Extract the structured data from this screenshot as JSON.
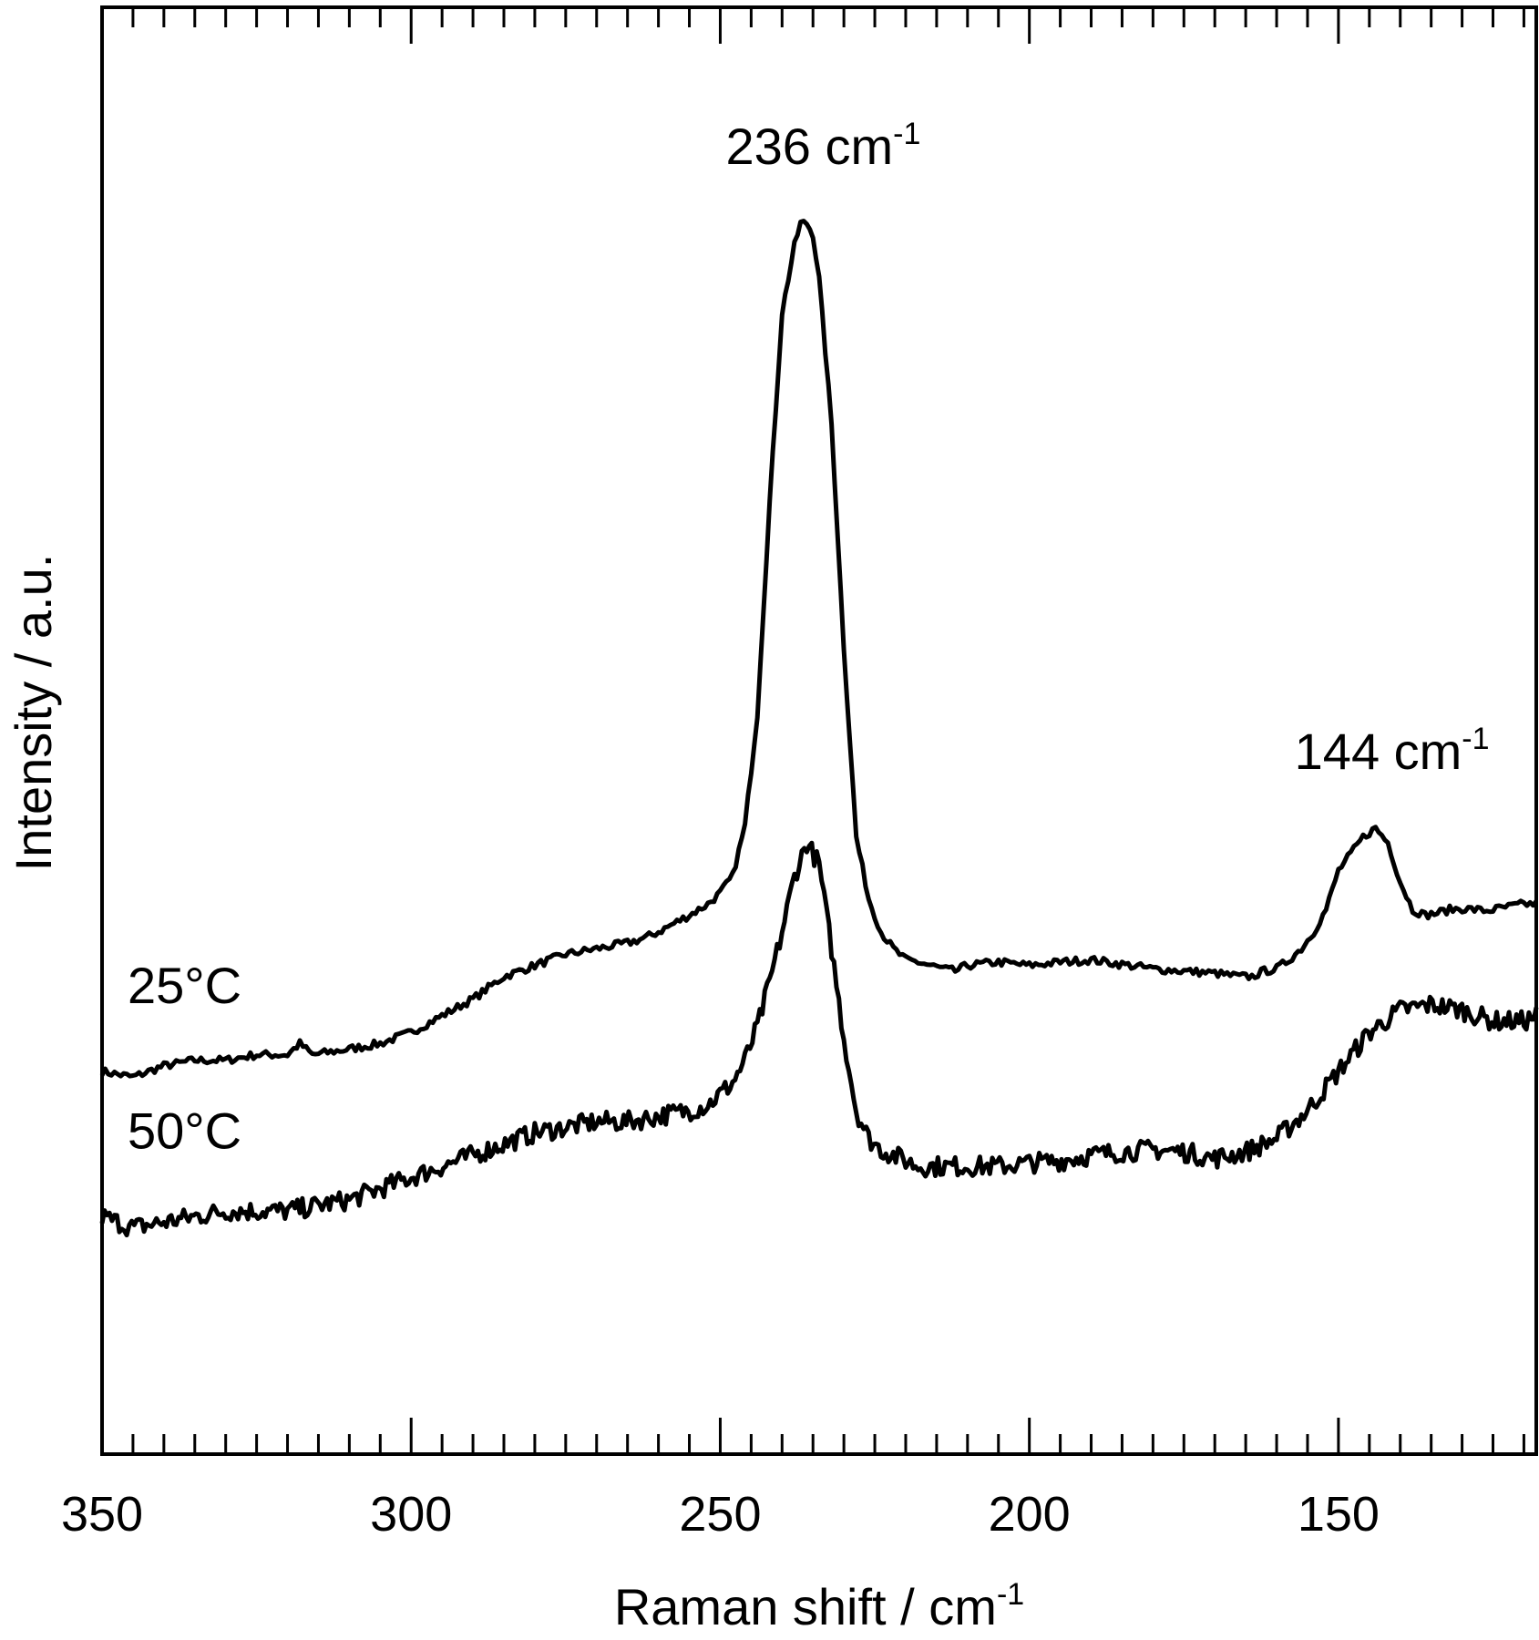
{
  "chart_data": {
    "type": "line",
    "xlabel": "Raman shift / cm",
    "xlabel_sup": "-1",
    "ylabel": "Intensity / a.u.",
    "xlim": [
      350,
      118
    ],
    "x_reversed": true,
    "ylim": [
      0,
      100
    ],
    "y_ticks_shown": false,
    "x_tick_labels": [
      350,
      300,
      250,
      200,
      150
    ],
    "x_tick_step": 5,
    "grid": false,
    "line_color": "#000000",
    "series": [
      {
        "name": "25°C",
        "x": [
          350,
          345,
          340,
          335,
          330,
          325,
          320,
          318,
          316,
          310,
          305,
          300,
          295,
          290,
          285,
          280,
          275,
          270,
          265,
          262,
          260,
          255,
          252,
          250,
          248,
          246,
          244,
          242,
          240,
          238,
          237,
          236,
          235,
          234,
          232,
          230,
          228,
          226,
          224,
          222,
          220,
          218,
          216,
          214,
          212,
          210,
          205,
          200,
          195,
          190,
          185,
          180,
          175,
          170,
          166,
          164,
          162,
          160,
          158,
          156,
          154,
          152,
          150,
          148,
          146,
          144,
          142,
          140,
          138,
          136,
          134,
          132,
          130,
          128,
          126,
          124,
          122,
          120,
          118
        ],
        "y": [
          24,
          23.5,
          24.5,
          25,
          25,
          25.5,
          25.5,
          26.5,
          25.5,
          26,
          26.5,
          27.5,
          29,
          30.5,
          32.5,
          33.5,
          34.5,
          35,
          35.5,
          36,
          36.5,
          38,
          39,
          40,
          41.5,
          46,
          56,
          75,
          92,
          98,
          100,
          100,
          99,
          95,
          82,
          62,
          45,
          39.5,
          36.5,
          35,
          34,
          33.8,
          33.5,
          33.2,
          33,
          33.5,
          33.8,
          33.5,
          33.8,
          34,
          33.6,
          33.2,
          33,
          32.8,
          32.5,
          32.5,
          33,
          33.2,
          34,
          35,
          36.5,
          38.5,
          42,
          43.5,
          45,
          45.8,
          44.5,
          41,
          38.5,
          38,
          38.2,
          38.5,
          38.6,
          38.5,
          38.4,
          38.6,
          38.8,
          39,
          39
        ]
      },
      {
        "name": "50°C",
        "x": [
          350,
          345,
          340,
          335,
          330,
          325,
          320,
          315,
          310,
          305,
          300,
          295,
          290,
          285,
          280,
          275,
          270,
          265,
          260,
          255,
          252,
          250,
          248,
          246,
          244,
          242,
          240,
          238,
          236,
          234,
          232,
          230,
          228,
          226,
          224,
          222,
          220,
          218,
          215,
          210,
          205,
          200,
          195,
          190,
          185,
          180,
          175,
          170,
          165,
          160,
          155,
          150,
          145,
          140,
          135,
          130,
          125,
          120,
          118
        ],
        "y": [
          11,
          10,
          10.5,
          11,
          11.5,
          11.5,
          11.5,
          12,
          12.5,
          13.5,
          14.5,
          15.5,
          16.5,
          17.5,
          18.5,
          19,
          19.5,
          19.5,
          20,
          20.5,
          21,
          22,
          23,
          25,
          28,
          32,
          36.5,
          41.5,
          44.5,
          42.5,
          35,
          27,
          20.5,
          18,
          17,
          16.5,
          16,
          15.5,
          15.5,
          15.5,
          15.5,
          15.8,
          16,
          16.5,
          16.8,
          17,
          16.8,
          16.2,
          16.8,
          18,
          20.5,
          24,
          27.5,
          29.5,
          30,
          29.5,
          28.5,
          28.5,
          29
        ]
      }
    ],
    "annotations": [
      {
        "text": "236 cm",
        "sup": "-1",
        "x": 236,
        "y": 100
      },
      {
        "text": "144 cm",
        "sup": "-1",
        "x": 144,
        "y": 45.8
      }
    ]
  }
}
